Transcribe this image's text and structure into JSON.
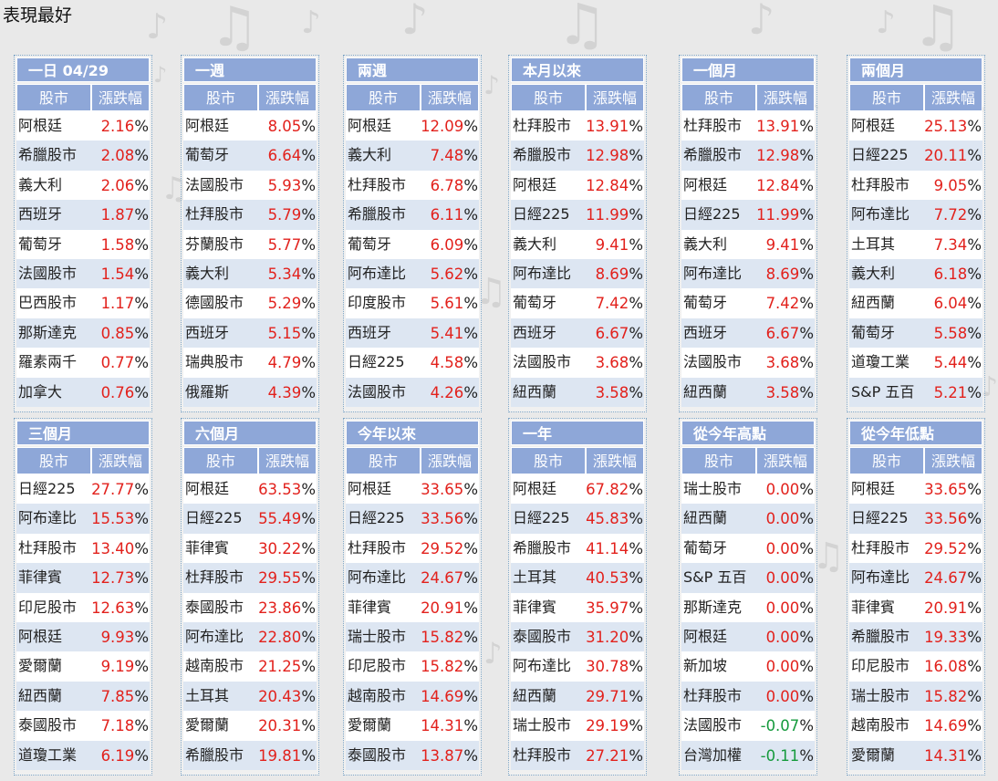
{
  "page_title": "表現最好",
  "column_headers": {
    "market": "股市",
    "change": "漲跌幅"
  },
  "percent_sign": "%",
  "colors": {
    "header_bg": "#8ea7d8",
    "row_alt": "#dde6f2",
    "positive": "#e2211c",
    "negative": "#159a3c"
  },
  "panels": [
    {
      "title": "一日 04/29",
      "rows": [
        {
          "name": "阿根廷",
          "value": "2.16"
        },
        {
          "name": "希臘股市",
          "value": "2.08"
        },
        {
          "name": "義大利",
          "value": "2.06"
        },
        {
          "name": "西班牙",
          "value": "1.87"
        },
        {
          "name": "葡萄牙",
          "value": "1.58"
        },
        {
          "name": "法國股市",
          "value": "1.54"
        },
        {
          "name": "巴西股市",
          "value": "1.17"
        },
        {
          "name": "那斯達克",
          "value": "0.85"
        },
        {
          "name": "羅素兩千",
          "value": "0.77"
        },
        {
          "name": "加拿大",
          "value": "0.76"
        }
      ]
    },
    {
      "title": "一週",
      "rows": [
        {
          "name": "阿根廷",
          "value": "8.05"
        },
        {
          "name": "葡萄牙",
          "value": "6.64"
        },
        {
          "name": "法國股市",
          "value": "5.93"
        },
        {
          "name": "杜拜股市",
          "value": "5.79"
        },
        {
          "name": "芬蘭股市",
          "value": "5.77"
        },
        {
          "name": "義大利",
          "value": "5.34"
        },
        {
          "name": "德國股市",
          "value": "5.29"
        },
        {
          "name": "西班牙",
          "value": "5.15"
        },
        {
          "name": "瑞典股市",
          "value": "4.79"
        },
        {
          "name": "俄羅斯",
          "value": "4.39"
        }
      ]
    },
    {
      "title": "兩週",
      "rows": [
        {
          "name": "阿根廷",
          "value": "12.09"
        },
        {
          "name": "義大利",
          "value": "7.48"
        },
        {
          "name": "杜拜股市",
          "value": "6.78"
        },
        {
          "name": "希臘股市",
          "value": "6.11"
        },
        {
          "name": "葡萄牙",
          "value": "6.09"
        },
        {
          "name": "阿布達比",
          "value": "5.62"
        },
        {
          "name": "印度股市",
          "value": "5.61"
        },
        {
          "name": "西班牙",
          "value": "5.41"
        },
        {
          "name": "日經225",
          "value": "4.58"
        },
        {
          "name": "法國股市",
          "value": "4.26"
        }
      ]
    },
    {
      "title": "本月以來",
      "rows": [
        {
          "name": "杜拜股市",
          "value": "13.91"
        },
        {
          "name": "希臘股市",
          "value": "12.98"
        },
        {
          "name": "阿根廷",
          "value": "12.84"
        },
        {
          "name": "日經225",
          "value": "11.99"
        },
        {
          "name": "義大利",
          "value": "9.41"
        },
        {
          "name": "阿布達比",
          "value": "8.69"
        },
        {
          "name": "葡萄牙",
          "value": "7.42"
        },
        {
          "name": "西班牙",
          "value": "6.67"
        },
        {
          "name": "法國股市",
          "value": "3.68"
        },
        {
          "name": "紐西蘭",
          "value": "3.58"
        }
      ]
    },
    {
      "title": "一個月",
      "rows": [
        {
          "name": "杜拜股市",
          "value": "13.91"
        },
        {
          "name": "希臘股市",
          "value": "12.98"
        },
        {
          "name": "阿根廷",
          "value": "12.84"
        },
        {
          "name": "日經225",
          "value": "11.99"
        },
        {
          "name": "義大利",
          "value": "9.41"
        },
        {
          "name": "阿布達比",
          "value": "8.69"
        },
        {
          "name": "葡萄牙",
          "value": "7.42"
        },
        {
          "name": "西班牙",
          "value": "6.67"
        },
        {
          "name": "法國股市",
          "value": "3.68"
        },
        {
          "name": "紐西蘭",
          "value": "3.58"
        }
      ]
    },
    {
      "title": "兩個月",
      "rows": [
        {
          "name": "阿根廷",
          "value": "25.13"
        },
        {
          "name": "日經225",
          "value": "20.11"
        },
        {
          "name": "杜拜股市",
          "value": "9.05"
        },
        {
          "name": "阿布達比",
          "value": "7.72"
        },
        {
          "name": "土耳其",
          "value": "7.34"
        },
        {
          "name": "義大利",
          "value": "6.18"
        },
        {
          "name": "紐西蘭",
          "value": "6.04"
        },
        {
          "name": "葡萄牙",
          "value": "5.58"
        },
        {
          "name": "道瓊工業",
          "value": "5.44"
        },
        {
          "name": "S&P 五百",
          "value": "5.21"
        }
      ]
    },
    {
      "title": "三個月",
      "rows": [
        {
          "name": "日經225",
          "value": "27.77"
        },
        {
          "name": "阿布達比",
          "value": "15.53"
        },
        {
          "name": "杜拜股市",
          "value": "13.40"
        },
        {
          "name": "菲律賓",
          "value": "12.73"
        },
        {
          "name": "印尼股市",
          "value": "12.63"
        },
        {
          "name": "阿根廷",
          "value": "9.93"
        },
        {
          "name": "愛爾蘭",
          "value": "9.19"
        },
        {
          "name": "紐西蘭",
          "value": "7.85"
        },
        {
          "name": "泰國股市",
          "value": "7.18"
        },
        {
          "name": "道瓊工業",
          "value": "6.19"
        }
      ]
    },
    {
      "title": "六個月",
      "rows": [
        {
          "name": "阿根廷",
          "value": "63.53"
        },
        {
          "name": "日經225",
          "value": "55.49"
        },
        {
          "name": "菲律賓",
          "value": "30.22"
        },
        {
          "name": "杜拜股市",
          "value": "29.55"
        },
        {
          "name": "泰國股市",
          "value": "23.86"
        },
        {
          "name": "阿布達比",
          "value": "22.80"
        },
        {
          "name": "越南股市",
          "value": "21.25"
        },
        {
          "name": "土耳其",
          "value": "20.43"
        },
        {
          "name": "愛爾蘭",
          "value": "20.31"
        },
        {
          "name": "希臘股市",
          "value": "19.81"
        }
      ]
    },
    {
      "title": "今年以來",
      "rows": [
        {
          "name": "阿根廷",
          "value": "33.65"
        },
        {
          "name": "日經225",
          "value": "33.56"
        },
        {
          "name": "杜拜股市",
          "value": "29.52"
        },
        {
          "name": "阿布達比",
          "value": "24.67"
        },
        {
          "name": "菲律賓",
          "value": "20.91"
        },
        {
          "name": "瑞士股市",
          "value": "15.82"
        },
        {
          "name": "印尼股市",
          "value": "15.82"
        },
        {
          "name": "越南股市",
          "value": "14.69"
        },
        {
          "name": "愛爾蘭",
          "value": "14.31"
        },
        {
          "name": "泰國股市",
          "value": "13.87"
        }
      ]
    },
    {
      "title": "一年",
      "rows": [
        {
          "name": "阿根廷",
          "value": "67.82"
        },
        {
          "name": "日經225",
          "value": "45.83"
        },
        {
          "name": "希臘股市",
          "value": "41.14"
        },
        {
          "name": "土耳其",
          "value": "40.53"
        },
        {
          "name": "菲律賓",
          "value": "35.97"
        },
        {
          "name": "泰國股市",
          "value": "31.20"
        },
        {
          "name": "阿布達比",
          "value": "30.78"
        },
        {
          "name": "紐西蘭",
          "value": "29.71"
        },
        {
          "name": "瑞士股市",
          "value": "29.19"
        },
        {
          "name": "杜拜股市",
          "value": "27.21"
        }
      ]
    },
    {
      "title": "從今年高點",
      "rows": [
        {
          "name": "瑞士股市",
          "value": "0.00"
        },
        {
          "name": "紐西蘭",
          "value": "0.00"
        },
        {
          "name": "葡萄牙",
          "value": "0.00"
        },
        {
          "name": "S&P 五百",
          "value": "0.00"
        },
        {
          "name": "那斯達克",
          "value": "0.00"
        },
        {
          "name": "阿根廷",
          "value": "0.00"
        },
        {
          "name": "新加坡",
          "value": "0.00"
        },
        {
          "name": "杜拜股市",
          "value": "0.00"
        },
        {
          "name": "法國股市",
          "value": "-0.07"
        },
        {
          "name": "台灣加權",
          "value": "-0.11"
        }
      ]
    },
    {
      "title": "從今年低點",
      "rows": [
        {
          "name": "阿根廷",
          "value": "33.65"
        },
        {
          "name": "日經225",
          "value": "33.56"
        },
        {
          "name": "杜拜股市",
          "value": "29.52"
        },
        {
          "name": "阿布達比",
          "value": "24.67"
        },
        {
          "name": "菲律賓",
          "value": "20.91"
        },
        {
          "name": "希臘股市",
          "value": "19.33"
        },
        {
          "name": "印尼股市",
          "value": "16.08"
        },
        {
          "name": "瑞士股市",
          "value": "15.82"
        },
        {
          "name": "越南股市",
          "value": "14.69"
        },
        {
          "name": "愛爾蘭",
          "value": "14.31"
        }
      ]
    }
  ]
}
